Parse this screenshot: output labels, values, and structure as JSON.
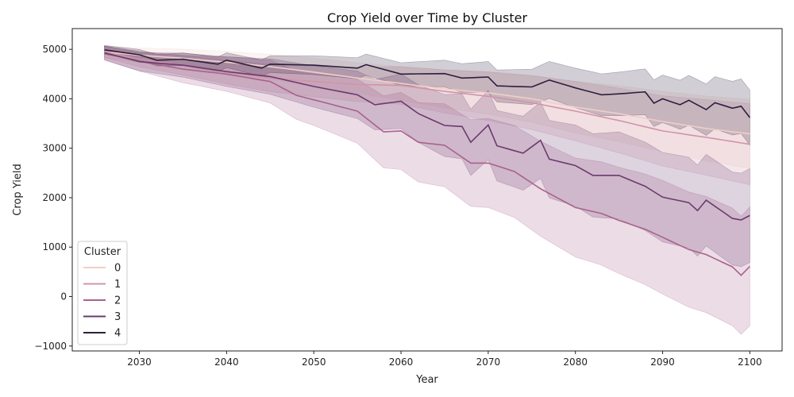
{
  "chart_data": {
    "type": "line",
    "title": "Crop Yield over Time by Cluster",
    "xlabel": "Year",
    "ylabel": "Crop Yield",
    "xlim": [
      2022.3,
      2103.7
    ],
    "ylim": [
      -1100,
      5420
    ],
    "xticks": [
      2030,
      2040,
      2050,
      2060,
      2070,
      2080,
      2090,
      2100
    ],
    "yticks": [
      -1000,
      0,
      1000,
      2000,
      3000,
      4000,
      5000
    ],
    "grid": false,
    "legend": {
      "title": "Cluster",
      "placement": "lower-left"
    },
    "x_start": 2026,
    "x_end": 2100,
    "series": [
      {
        "name": "0",
        "color": "#efcfc7",
        "keypoints": [
          [
            2026,
            4950
          ],
          [
            2030,
            4880
          ],
          [
            2035,
            4820
          ],
          [
            2040,
            4740
          ],
          [
            2045,
            4650
          ],
          [
            2050,
            4540
          ],
          [
            2055,
            4420
          ],
          [
            2060,
            4310
          ],
          [
            2065,
            4200
          ],
          [
            2070,
            4120
          ],
          [
            2075,
            4000
          ],
          [
            2080,
            3830
          ],
          [
            2085,
            3700
          ],
          [
            2090,
            3540
          ],
          [
            2095,
            3400
          ],
          [
            2100,
            3290
          ]
        ],
        "band": [
          [
            2026,
            120
          ],
          [
            2040,
            220
          ],
          [
            2060,
            340
          ],
          [
            2080,
            520
          ],
          [
            2100,
            700
          ]
        ]
      },
      {
        "name": "1",
        "color": "#d194a8",
        "keypoints": [
          [
            2026,
            4950
          ],
          [
            2030,
            4800
          ],
          [
            2035,
            4680
          ],
          [
            2040,
            4540
          ],
          [
            2045,
            4420
          ],
          [
            2050,
            4350
          ],
          [
            2055,
            4290
          ],
          [
            2060,
            4270
          ],
          [
            2065,
            4150
          ],
          [
            2070,
            4050
          ],
          [
            2075,
            3920
          ],
          [
            2080,
            3750
          ],
          [
            2085,
            3560
          ],
          [
            2090,
            3350
          ],
          [
            2095,
            3220
          ],
          [
            2100,
            3080
          ]
        ],
        "band": [
          [
            2026,
            120
          ],
          [
            2040,
            240
          ],
          [
            2060,
            380
          ],
          [
            2080,
            600
          ],
          [
            2100,
            820
          ]
        ]
      },
      {
        "name": "2",
        "color": "#a9618b",
        "keypoints": [
          [
            2026,
            4920
          ],
          [
            2030,
            4760
          ],
          [
            2035,
            4600
          ],
          [
            2040,
            4500
          ],
          [
            2045,
            4350
          ],
          [
            2048,
            4070
          ],
          [
            2050,
            3980
          ],
          [
            2055,
            3750
          ],
          [
            2058,
            3330
          ],
          [
            2060,
            3350
          ],
          [
            2062,
            3120
          ],
          [
            2065,
            3060
          ],
          [
            2068,
            2700
          ],
          [
            2070,
            2700
          ],
          [
            2073,
            2530
          ],
          [
            2076,
            2180
          ],
          [
            2080,
            1800
          ],
          [
            2083,
            1680
          ],
          [
            2085,
            1540
          ],
          [
            2088,
            1360
          ],
          [
            2090,
            1200
          ],
          [
            2093,
            950
          ],
          [
            2095,
            850
          ],
          [
            2098,
            600
          ],
          [
            2099,
            430
          ],
          [
            2100,
            610
          ]
        ],
        "band": [
          [
            2026,
            140
          ],
          [
            2040,
            350
          ],
          [
            2050,
            520
          ],
          [
            2060,
            780
          ],
          [
            2070,
            900
          ],
          [
            2080,
            1000
          ],
          [
            2090,
            1150
          ],
          [
            2100,
            1200
          ]
        ]
      },
      {
        "name": "3",
        "color": "#6b3a6e",
        "keypoints": [
          [
            2026,
            4930
          ],
          [
            2030,
            4750
          ],
          [
            2035,
            4680
          ],
          [
            2040,
            4550
          ],
          [
            2045,
            4450
          ],
          [
            2050,
            4250
          ],
          [
            2055,
            4080
          ],
          [
            2057,
            3880
          ],
          [
            2060,
            3950
          ],
          [
            2062,
            3700
          ],
          [
            2065,
            3460
          ],
          [
            2067,
            3440
          ],
          [
            2068,
            3120
          ],
          [
            2070,
            3470
          ],
          [
            2071,
            3050
          ],
          [
            2074,
            2900
          ],
          [
            2076,
            3160
          ],
          [
            2077,
            2780
          ],
          [
            2080,
            2650
          ],
          [
            2082,
            2450
          ],
          [
            2085,
            2450
          ],
          [
            2088,
            2230
          ],
          [
            2090,
            2010
          ],
          [
            2093,
            1900
          ],
          [
            2094,
            1740
          ],
          [
            2095,
            1950
          ],
          [
            2098,
            1580
          ],
          [
            2099,
            1550
          ],
          [
            2100,
            1640
          ]
        ],
        "band": [
          [
            2026,
            140
          ],
          [
            2040,
            300
          ],
          [
            2055,
            480
          ],
          [
            2070,
            700
          ],
          [
            2085,
            880
          ],
          [
            2100,
            950
          ]
        ]
      },
      {
        "name": "4",
        "color": "#2d1e3e",
        "keypoints": [
          [
            2026,
            4990
          ],
          [
            2030,
            4890
          ],
          [
            2032,
            4780
          ],
          [
            2035,
            4800
          ],
          [
            2039,
            4700
          ],
          [
            2040,
            4780
          ],
          [
            2044,
            4620
          ],
          [
            2045,
            4700
          ],
          [
            2050,
            4680
          ],
          [
            2055,
            4620
          ],
          [
            2056,
            4690
          ],
          [
            2060,
            4500
          ],
          [
            2065,
            4510
          ],
          [
            2067,
            4420
          ],
          [
            2070,
            4440
          ],
          [
            2071,
            4260
          ],
          [
            2075,
            4240
          ],
          [
            2077,
            4380
          ],
          [
            2080,
            4220
          ],
          [
            2083,
            4080
          ],
          [
            2085,
            4100
          ],
          [
            2088,
            4140
          ],
          [
            2089,
            3910
          ],
          [
            2090,
            4000
          ],
          [
            2092,
            3880
          ],
          [
            2093,
            3970
          ],
          [
            2095,
            3780
          ],
          [
            2096,
            3920
          ],
          [
            2098,
            3810
          ],
          [
            2099,
            3850
          ],
          [
            2100,
            3620
          ]
        ],
        "band": [
          [
            2026,
            90
          ],
          [
            2040,
            150
          ],
          [
            2060,
            230
          ],
          [
            2080,
            400
          ],
          [
            2100,
            560
          ]
        ]
      }
    ]
  }
}
